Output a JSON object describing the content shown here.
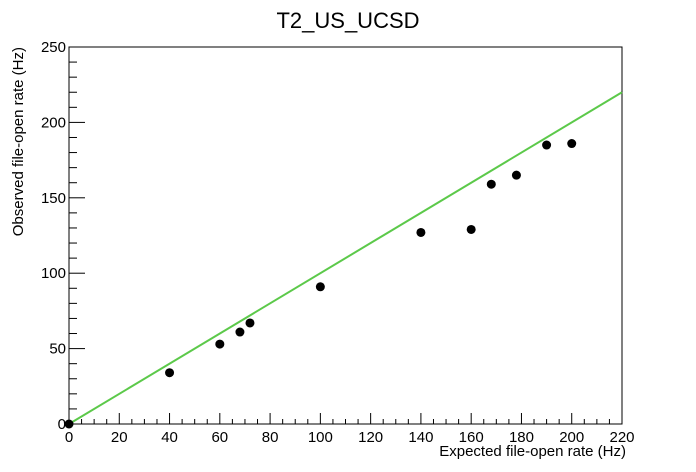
{
  "chart_data": {
    "type": "scatter",
    "title": "T2_US_UCSD",
    "xlabel": "Expected file-open rate (Hz)",
    "ylabel": "Observed file-open rate (Hz)",
    "xlim": [
      0,
      220
    ],
    "ylim": [
      0,
      250
    ],
    "x_ticks": [
      0,
      20,
      40,
      60,
      80,
      100,
      120,
      140,
      160,
      180,
      200,
      220
    ],
    "y_ticks": [
      0,
      50,
      100,
      150,
      200,
      250
    ],
    "grid": false,
    "reference_line": {
      "x": [
        0,
        220
      ],
      "y": [
        0,
        220
      ],
      "color": "#5cc94a"
    },
    "marker_color": "#000000",
    "points": [
      {
        "x": 0,
        "y": 0
      },
      {
        "x": 40,
        "y": 34
      },
      {
        "x": 60,
        "y": 53
      },
      {
        "x": 68,
        "y": 61
      },
      {
        "x": 72,
        "y": 67
      },
      {
        "x": 100,
        "y": 91
      },
      {
        "x": 140,
        "y": 127
      },
      {
        "x": 160,
        "y": 129
      },
      {
        "x": 168,
        "y": 159
      },
      {
        "x": 178,
        "y": 165
      },
      {
        "x": 190,
        "y": 185
      },
      {
        "x": 200,
        "y": 186
      }
    ]
  }
}
